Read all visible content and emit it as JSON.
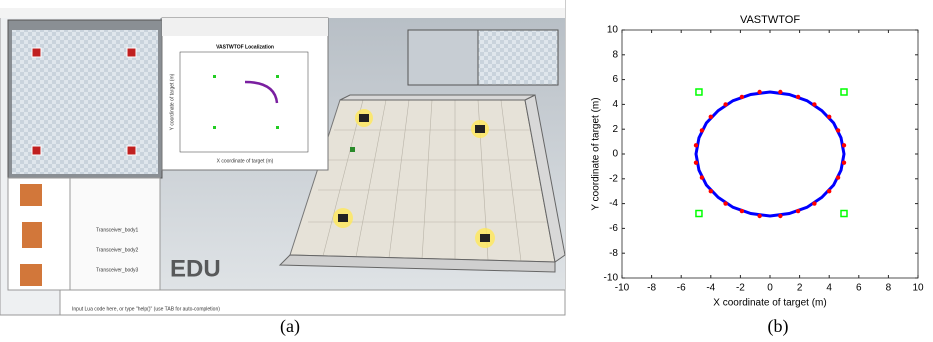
{
  "screenshot": {
    "figure_title": "VASTWTOF Localization",
    "figure_xlabel": "X coordinate of target (m)",
    "figure_ylabel": "Y coordinate of target (m)",
    "watermark": "EDU",
    "tree_items": [
      "Transceiver_body1",
      "Transceiver_body2",
      "Transceiver_body3"
    ],
    "console": "Input Lua code here, or type \"help()\" (use TAB for auto-completion)"
  },
  "captions": [
    "(a)",
    "(b)"
  ],
  "chart_data": {
    "type": "scatter",
    "title": "VASTWTOF",
    "x_label": "X coordinate of target (m)",
    "y_label": "Y coordinate of target (m)",
    "xlim": [
      -10,
      10
    ],
    "ylim": [
      -10,
      10
    ],
    "xticks": [
      -10,
      -8,
      -6,
      -4,
      -2,
      0,
      2,
      4,
      6,
      8,
      10
    ],
    "yticks": [
      -10,
      -8,
      -6,
      -4,
      -2,
      0,
      2,
      4,
      6,
      8,
      10
    ],
    "series": [
      {
        "color": "#0000ff",
        "mode": "line",
        "x": [
          5,
          4.8,
          4.3,
          3.5,
          2.5,
          1.3,
          0,
          -1.3,
          -2.5,
          -3.5,
          -4.3,
          -4.8,
          -5,
          -4.8,
          -4.3,
          -3.5,
          -2.5,
          -1.3,
          0,
          1.3,
          2.5,
          3.5,
          4.3,
          4.8
        ],
        "y": [
          0,
          1.3,
          2.5,
          3.5,
          4.3,
          4.8,
          5,
          4.8,
          4.3,
          3.5,
          2.5,
          1.3,
          0,
          -1.3,
          -2.5,
          -3.5,
          -4.3,
          -4.8,
          -5,
          -4.8,
          -4.3,
          -3.5,
          -2.5,
          -1.3
        ]
      },
      {
        "color": "#ff0000",
        "mode": "markers",
        "x": [
          5,
          4.6,
          4,
          3,
          1.9,
          0.7,
          -0.7,
          -1.9,
          -3,
          -4,
          -4.6,
          -5,
          -5,
          -4.6,
          -4,
          -3,
          -1.9,
          -0.7,
          0.7,
          1.9,
          3,
          4,
          4.6,
          5
        ],
        "y": [
          0.7,
          1.9,
          3,
          4,
          4.6,
          5,
          5,
          4.6,
          4,
          3,
          1.9,
          0.7,
          -0.7,
          -1.9,
          -3,
          -4,
          -4.6,
          -5,
          -5,
          -4.6,
          -4,
          -3,
          -1.9,
          -0.7
        ]
      },
      {
        "color": "#00ff00",
        "mode": "squares",
        "x": [
          -4.8,
          5,
          -4.8,
          5
        ],
        "y": [
          5,
          5,
          -4.8,
          -4.8
        ]
      }
    ]
  }
}
